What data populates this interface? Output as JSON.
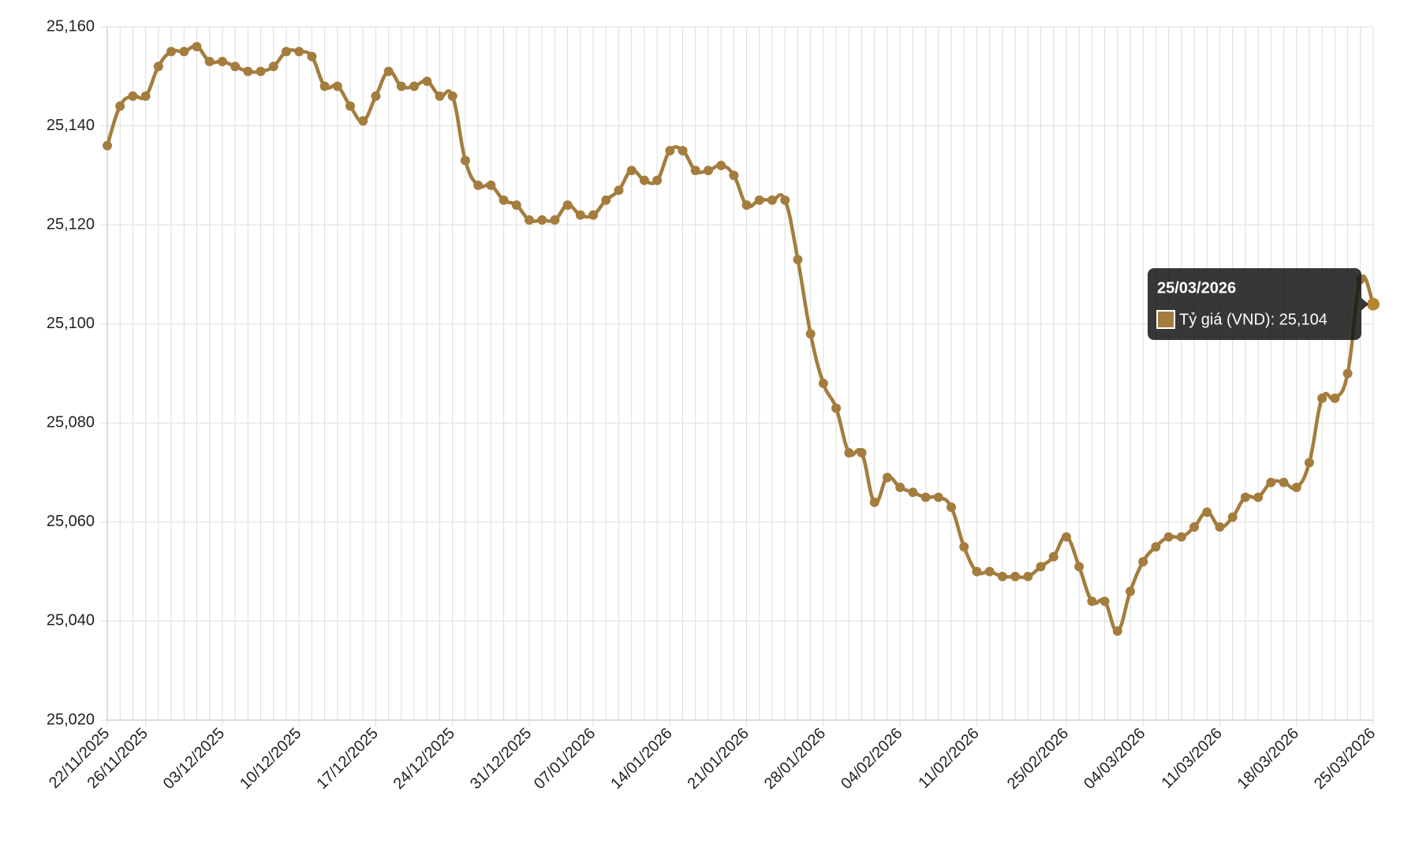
{
  "chart_data": {
    "type": "line",
    "categories": [
      "22/11/2025",
      null,
      null,
      "26/11/2025",
      null,
      null,
      null,
      null,
      null,
      "03/12/2025",
      null,
      null,
      null,
      null,
      null,
      "10/12/2025",
      null,
      null,
      null,
      null,
      null,
      "17/12/2025",
      null,
      null,
      null,
      null,
      null,
      "24/12/2025",
      null,
      null,
      null,
      null,
      null,
      "31/12/2025",
      null,
      null,
      null,
      null,
      "07/01/2026",
      null,
      null,
      null,
      null,
      null,
      "14/01/2026",
      null,
      null,
      null,
      null,
      null,
      "21/01/2026",
      null,
      null,
      null,
      null,
      null,
      "28/01/2026",
      null,
      null,
      null,
      null,
      null,
      "04/02/2026",
      null,
      null,
      null,
      null,
      null,
      "11/02/2026",
      null,
      null,
      null,
      null,
      null,
      null,
      "25/02/2026",
      null,
      null,
      null,
      null,
      null,
      "04/03/2026",
      null,
      null,
      null,
      null,
      null,
      "11/03/2026",
      null,
      null,
      null,
      null,
      null,
      "18/03/2026",
      null,
      null,
      null,
      null,
      null,
      "25/03/2026"
    ],
    "series": [
      {
        "name": "Tỷ giá (VND)",
        "color": "#a47d3e",
        "values": [
          25136,
          25144,
          25146,
          25146,
          25152,
          25155,
          25155,
          25156,
          25153,
          25153,
          25152,
          25151,
          25151,
          25152,
          25155,
          25155,
          25154,
          25148,
          25148,
          25144,
          25141,
          25146,
          25151,
          25148,
          25148,
          25149,
          25146,
          25146,
          25133,
          25128,
          25128,
          25125,
          25124,
          25121,
          25121,
          25121,
          25124,
          25122,
          25122,
          25125,
          25127,
          25131,
          25129,
          25129,
          25135,
          25135,
          25131,
          25131,
          25132,
          25130,
          25124,
          25125,
          25125,
          25125,
          25113,
          25098,
          25088,
          25083,
          25074,
          25074,
          25064,
          25069,
          25067,
          25066,
          25065,
          25065,
          25063,
          25055,
          25050,
          25050,
          25049,
          25049,
          25049,
          25051,
          25053,
          25057,
          25051,
          25044,
          25044,
          25038,
          25046,
          25052,
          25055,
          25057,
          25057,
          25059,
          25062,
          25059,
          25061,
          25065,
          25065,
          25068,
          25068,
          25067,
          25072,
          25085,
          25085,
          25090,
          25109,
          25104
        ]
      }
    ],
    "ylim": [
      25020,
      25160
    ],
    "yticks": [
      {
        "value": 25020,
        "label": "25,020"
      },
      {
        "value": 25040,
        "label": "25,040"
      },
      {
        "value": 25060,
        "label": "25,060"
      },
      {
        "value": 25080,
        "label": "25,080"
      },
      {
        "value": 25100,
        "label": "25,100"
      },
      {
        "value": 25120,
        "label": "25,120"
      },
      {
        "value": 25140,
        "label": "25,140"
      },
      {
        "value": 25160,
        "label": "25,160"
      }
    ],
    "grid": true,
    "tooltip": {
      "title": "25/03/2026",
      "label": "Tỷ giá (VND): 25,104"
    }
  }
}
